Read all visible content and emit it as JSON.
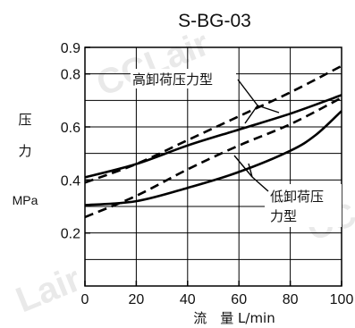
{
  "chart_data": {
    "type": "line",
    "title": "S-BG-03",
    "ylabel_chars": [
      "压",
      "力"
    ],
    "yunit": "MPa",
    "xlabel": "流　量 L/min",
    "xlim": [
      0,
      100
    ],
    "ylim": [
      0,
      0.9
    ],
    "xticks": [
      0,
      20,
      40,
      60,
      80,
      100
    ],
    "xtick_labels": [
      "0",
      "20",
      "40",
      "60",
      "80",
      "100"
    ],
    "yticks": [
      0.2,
      0.4,
      0.6,
      0.8,
      0.9
    ],
    "ytick_labels": [
      "0.2",
      "0.4",
      "0.6",
      "0.8",
      "0.9"
    ],
    "grid": true,
    "annotations": {
      "high": "高卸荷压力型",
      "low_line1": "低卸荷压",
      "low_line2": "力型"
    },
    "watermark": [
      "CCLair",
      "Lair",
      "CC"
    ],
    "series": [
      {
        "style": "solid",
        "group": "high",
        "x": [
          0,
          20,
          40,
          60,
          80,
          100
        ],
        "y": [
          0.41,
          0.46,
          0.53,
          0.59,
          0.65,
          0.72
        ]
      },
      {
        "style": "dashed",
        "group": "high",
        "x": [
          0,
          20,
          40,
          60,
          80,
          100
        ],
        "y": [
          0.39,
          0.46,
          0.55,
          0.64,
          0.73,
          0.83
        ]
      },
      {
        "style": "solid",
        "group": "low",
        "x": [
          0,
          20,
          40,
          60,
          80,
          90,
          100
        ],
        "y": [
          0.305,
          0.32,
          0.37,
          0.43,
          0.51,
          0.57,
          0.66
        ]
      },
      {
        "style": "dashed",
        "group": "low",
        "x": [
          0,
          20,
          40,
          60,
          80,
          100
        ],
        "y": [
          0.26,
          0.34,
          0.44,
          0.53,
          0.61,
          0.71
        ]
      }
    ]
  }
}
